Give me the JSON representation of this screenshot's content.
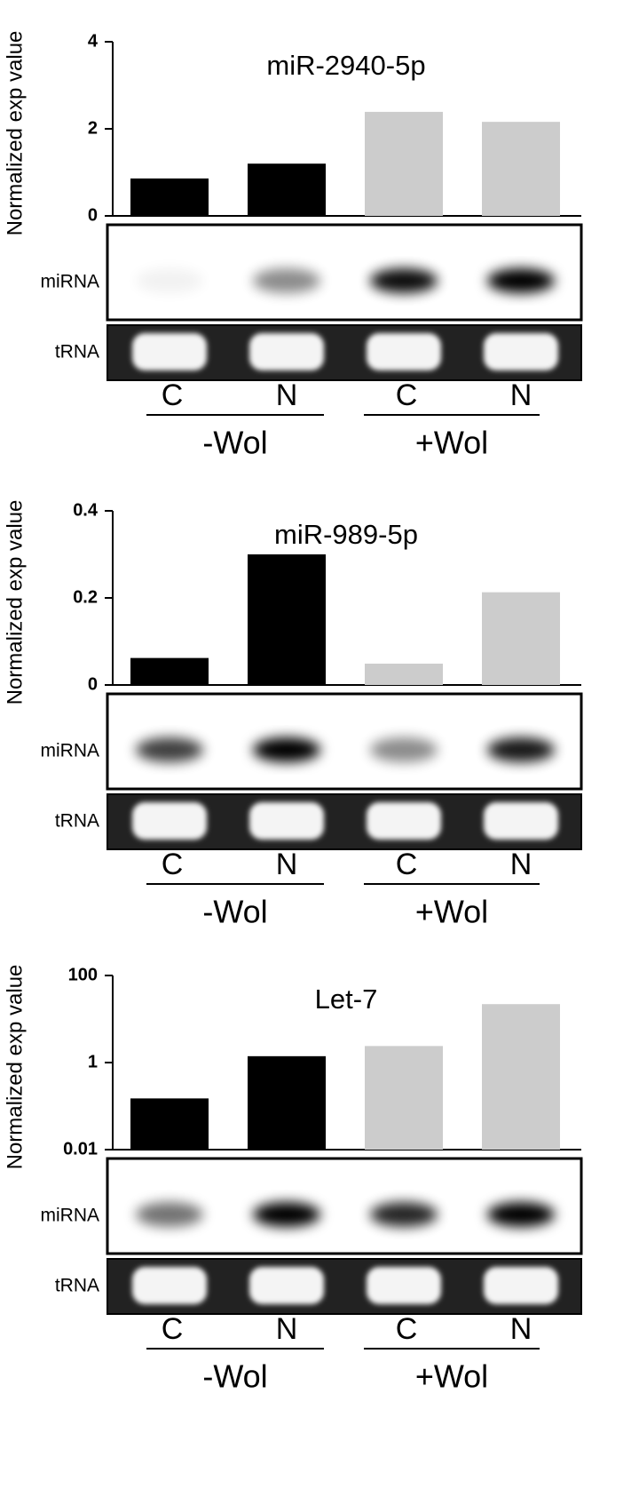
{
  "chart_data": [
    {
      "type": "bar",
      "title": "miR-2940-5p",
      "y_label": "Normalized exp value",
      "categories": [
        "C",
        "N",
        "C",
        "N"
      ],
      "groups": [
        "-Wol",
        "+Wol"
      ],
      "row_labels": [
        "miRNA",
        "tRNA"
      ],
      "values": [
        0.86,
        1.2,
        2.39,
        2.16
      ],
      "colors": [
        "#000000",
        "#000000",
        "#cccccc",
        "#cccccc"
      ],
      "ylim": [
        0,
        4
      ],
      "yticks": [
        0,
        2,
        4
      ],
      "log_scale": false
    },
    {
      "type": "bar",
      "title": "miR-989-5p",
      "y_label": "Normalized exp value",
      "categories": [
        "C",
        "N",
        "C",
        "N"
      ],
      "groups": [
        "-Wol",
        "+Wol"
      ],
      "row_labels": [
        "miRNA",
        "tRNA"
      ],
      "values": [
        0.062,
        0.3,
        0.049,
        0.213
      ],
      "colors": [
        "#000000",
        "#000000",
        "#cccccc",
        "#cccccc"
      ],
      "ylim": [
        0,
        0.4
      ],
      "yticks": [
        0,
        0.2,
        0.4
      ],
      "log_scale": false
    },
    {
      "type": "bar",
      "title": "Let-7",
      "y_label": "Normalized exp value",
      "categories": [
        "C",
        "N",
        "C",
        "N"
      ],
      "groups": [
        "-Wol",
        "+Wol"
      ],
      "row_labels": [
        "miRNA",
        "tRNA"
      ],
      "values": [
        0.15,
        1.4,
        2.4,
        22
      ],
      "colors": [
        "#000000",
        "#000000",
        "#cccccc",
        "#cccccc"
      ],
      "ylim": [
        0.01,
        100
      ],
      "yticks": [
        0.01,
        1,
        100
      ],
      "log_scale": true
    }
  ]
}
